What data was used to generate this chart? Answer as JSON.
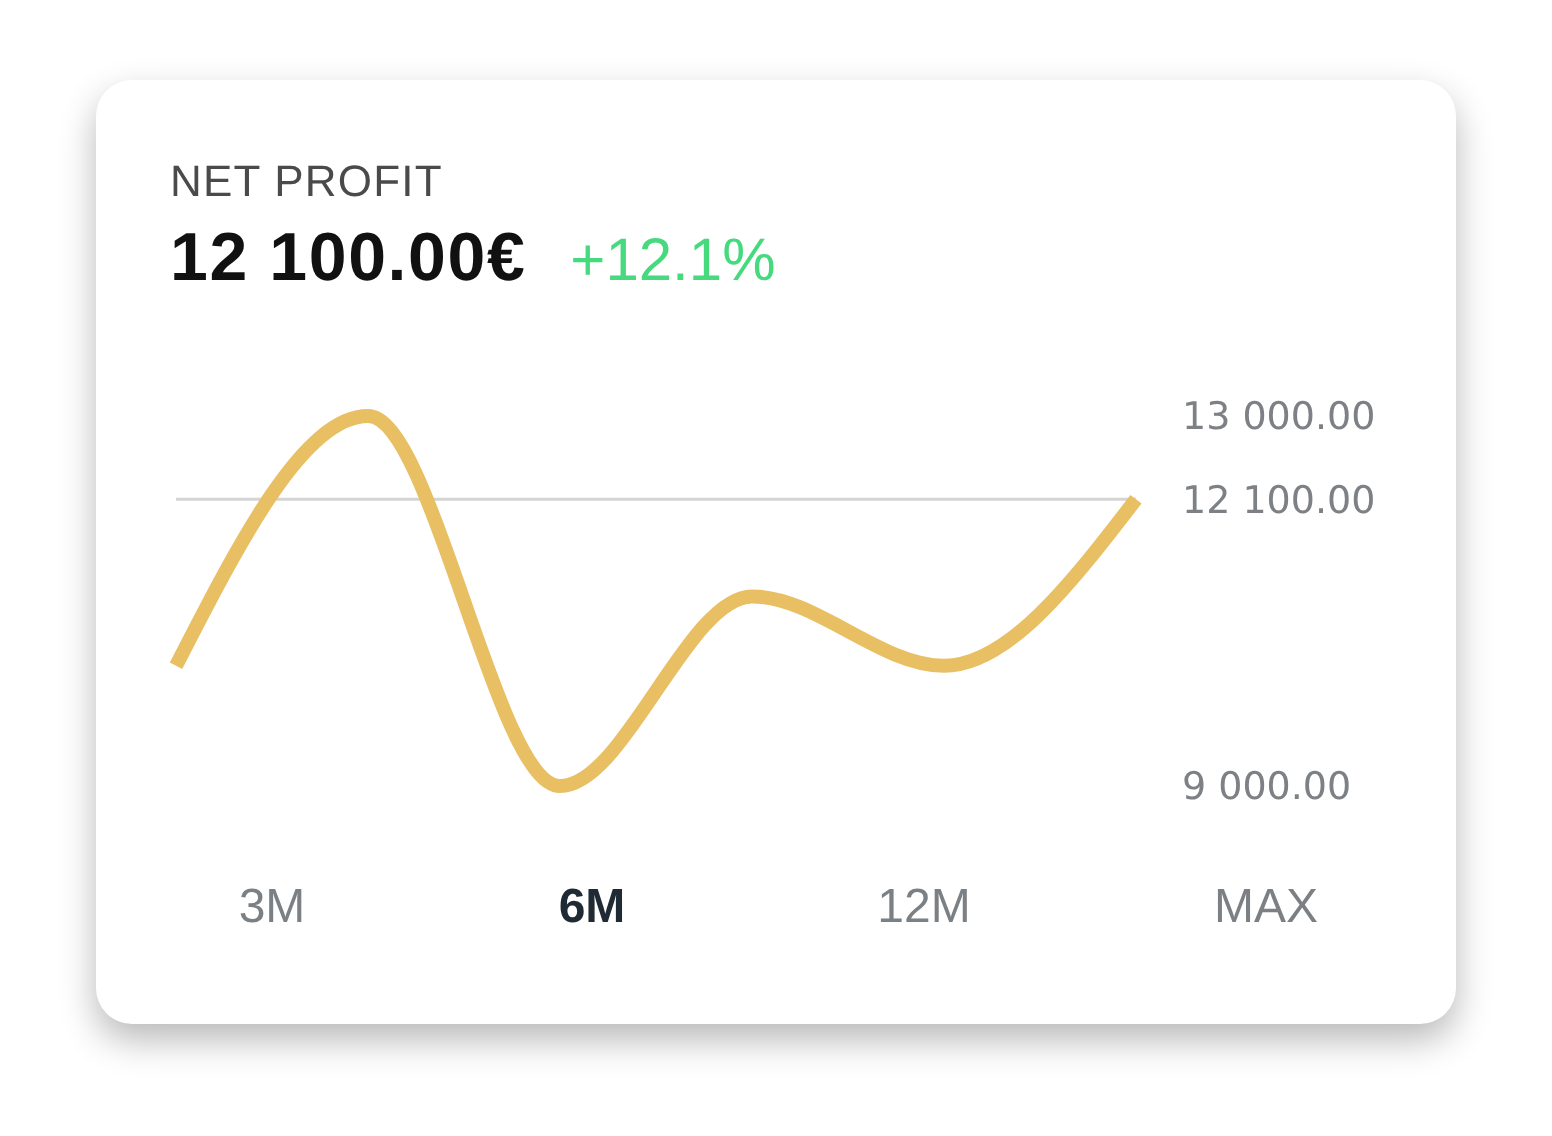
{
  "chart_data": {
    "type": "line",
    "title": "NET PROFIT",
    "subtitle": "12 100.00€",
    "annotations": [
      "+12.1%",
      "3M",
      "6M",
      "12M",
      "MAX"
    ],
    "categories": [
      null,
      null,
      null,
      null,
      null,
      null
    ],
    "values": [
      10300,
      13000,
      9000,
      11050,
      10300,
      12100
    ],
    "color": "#e8bf63",
    "ylim": [
      9000,
      13000
    ],
    "yticks": [
      {
        "value": 9000,
        "label": "9 000.00"
      },
      {
        "value": 12100,
        "label": "12 100.00"
      },
      {
        "value": 13000,
        "label": "13 000.00"
      }
    ],
    "ref_lines": [
      {
        "axis": "y",
        "value": 12100,
        "color": "#d4d4d4"
      }
    ],
    "tick_labels": "y",
    "marker": "none",
    "line_style": "solid"
  }
}
